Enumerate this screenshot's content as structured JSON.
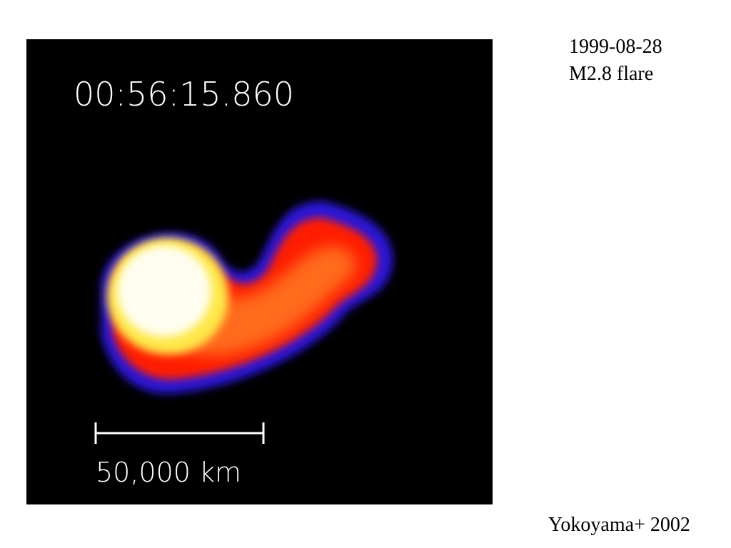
{
  "image": {
    "timestamp": "00:56:15.860",
    "scale_label": "50,000 km"
  },
  "caption": {
    "date": "1999-08-28",
    "event": "M2.8 flare"
  },
  "credit": "Yokoyama+ 2002"
}
